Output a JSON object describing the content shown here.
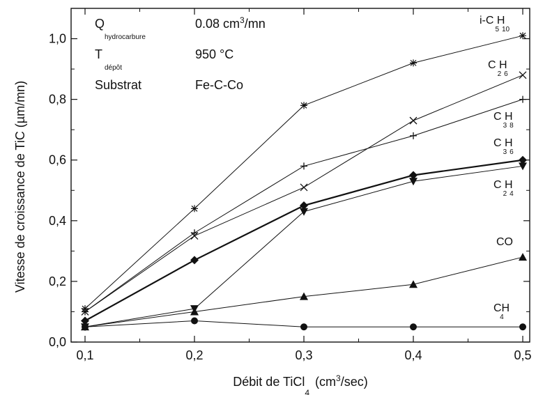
{
  "chart_data": {
    "type": "line",
    "xlabel": "Débit de TiCl",
    "xlabel_sub": "4",
    "xlabel_unit_pre": "(cm",
    "xlabel_unit_sup": "3",
    "xlabel_unit_post": "/sec)",
    "ylabel": "Vitesse de croissance de TiC (µm/mn)",
    "xlim": [
      0.1,
      0.5
    ],
    "ylim": [
      0.0,
      1.1
    ],
    "x_ticks": [
      "0,1",
      "0,2",
      "0,3",
      "0,4",
      "0,5"
    ],
    "y_ticks": [
      "0,0",
      "0,2",
      "0,4",
      "0,6",
      "0,8",
      "1,0"
    ],
    "x_tick_values": [
      0.1,
      0.2,
      0.3,
      0.4,
      0.5
    ],
    "y_tick_values": [
      0.0,
      0.2,
      0.4,
      0.6,
      0.8,
      1.0
    ],
    "grid": false,
    "x": [
      0.1,
      0.2,
      0.3,
      0.4,
      0.5
    ],
    "annotation": {
      "rows": [
        {
          "label": "Q",
          "sub": "hydrocarbure",
          "value": "0.08 cm",
          "value_sup": "3",
          "value_post": "/mn"
        },
        {
          "label": "T",
          "sub": "dépôt",
          "value": "950 °C",
          "value_sup": "",
          "value_post": ""
        },
        {
          "label": "Substrat",
          "sub": "",
          "value": "Fe-C-Co",
          "value_sup": "",
          "value_post": ""
        }
      ]
    },
    "series": [
      {
        "name_parts": [
          [
            "i-C",
            ""
          ],
          [
            " H",
            ""
          ],
          [
            "5",
            "sub"
          ],
          [
            "10",
            "sub"
          ]
        ],
        "marker": "star",
        "weight": "thin",
        "values": [
          0.11,
          0.44,
          0.78,
          0.92,
          1.01
        ]
      },
      {
        "name_parts": [
          [
            "C",
            ""
          ],
          [
            " H",
            ""
          ],
          [
            "2",
            "sub"
          ],
          [
            "6",
            "sub"
          ]
        ],
        "marker": "x",
        "weight": "thin",
        "values": [
          0.1,
          0.35,
          0.51,
          0.73,
          0.88
        ]
      },
      {
        "name_parts": [
          [
            "C",
            ""
          ],
          [
            " H",
            ""
          ],
          [
            "3",
            "sub"
          ],
          [
            "8",
            "sub"
          ]
        ],
        "marker": "plus",
        "weight": "thin",
        "values": [
          0.1,
          0.36,
          0.58,
          0.68,
          0.8
        ]
      },
      {
        "name_parts": [
          [
            "C",
            ""
          ],
          [
            " H",
            ""
          ],
          [
            "3",
            "sub"
          ],
          [
            "6",
            "sub"
          ]
        ],
        "marker": "diamond",
        "weight": "thick",
        "values": [
          0.07,
          0.27,
          0.45,
          0.55,
          0.6
        ]
      },
      {
        "name_parts": [
          [
            "C",
            ""
          ],
          [
            " H",
            ""
          ],
          [
            "2",
            "sub"
          ],
          [
            "4",
            "sub"
          ]
        ],
        "marker": "tri-down",
        "weight": "thin",
        "values": [
          0.05,
          0.11,
          0.43,
          0.53,
          0.58
        ]
      },
      {
        "name_parts": [
          [
            "CO",
            ""
          ]
        ],
        "marker": "tri-up",
        "weight": "thin",
        "values": [
          0.05,
          0.1,
          0.15,
          0.19,
          0.28
        ]
      },
      {
        "name_parts": [
          [
            "CH",
            ""
          ],
          [
            "4",
            "sub"
          ]
        ],
        "marker": "circle",
        "weight": "thin",
        "values": [
          0.05,
          0.07,
          0.05,
          0.05,
          0.05
        ]
      }
    ]
  }
}
